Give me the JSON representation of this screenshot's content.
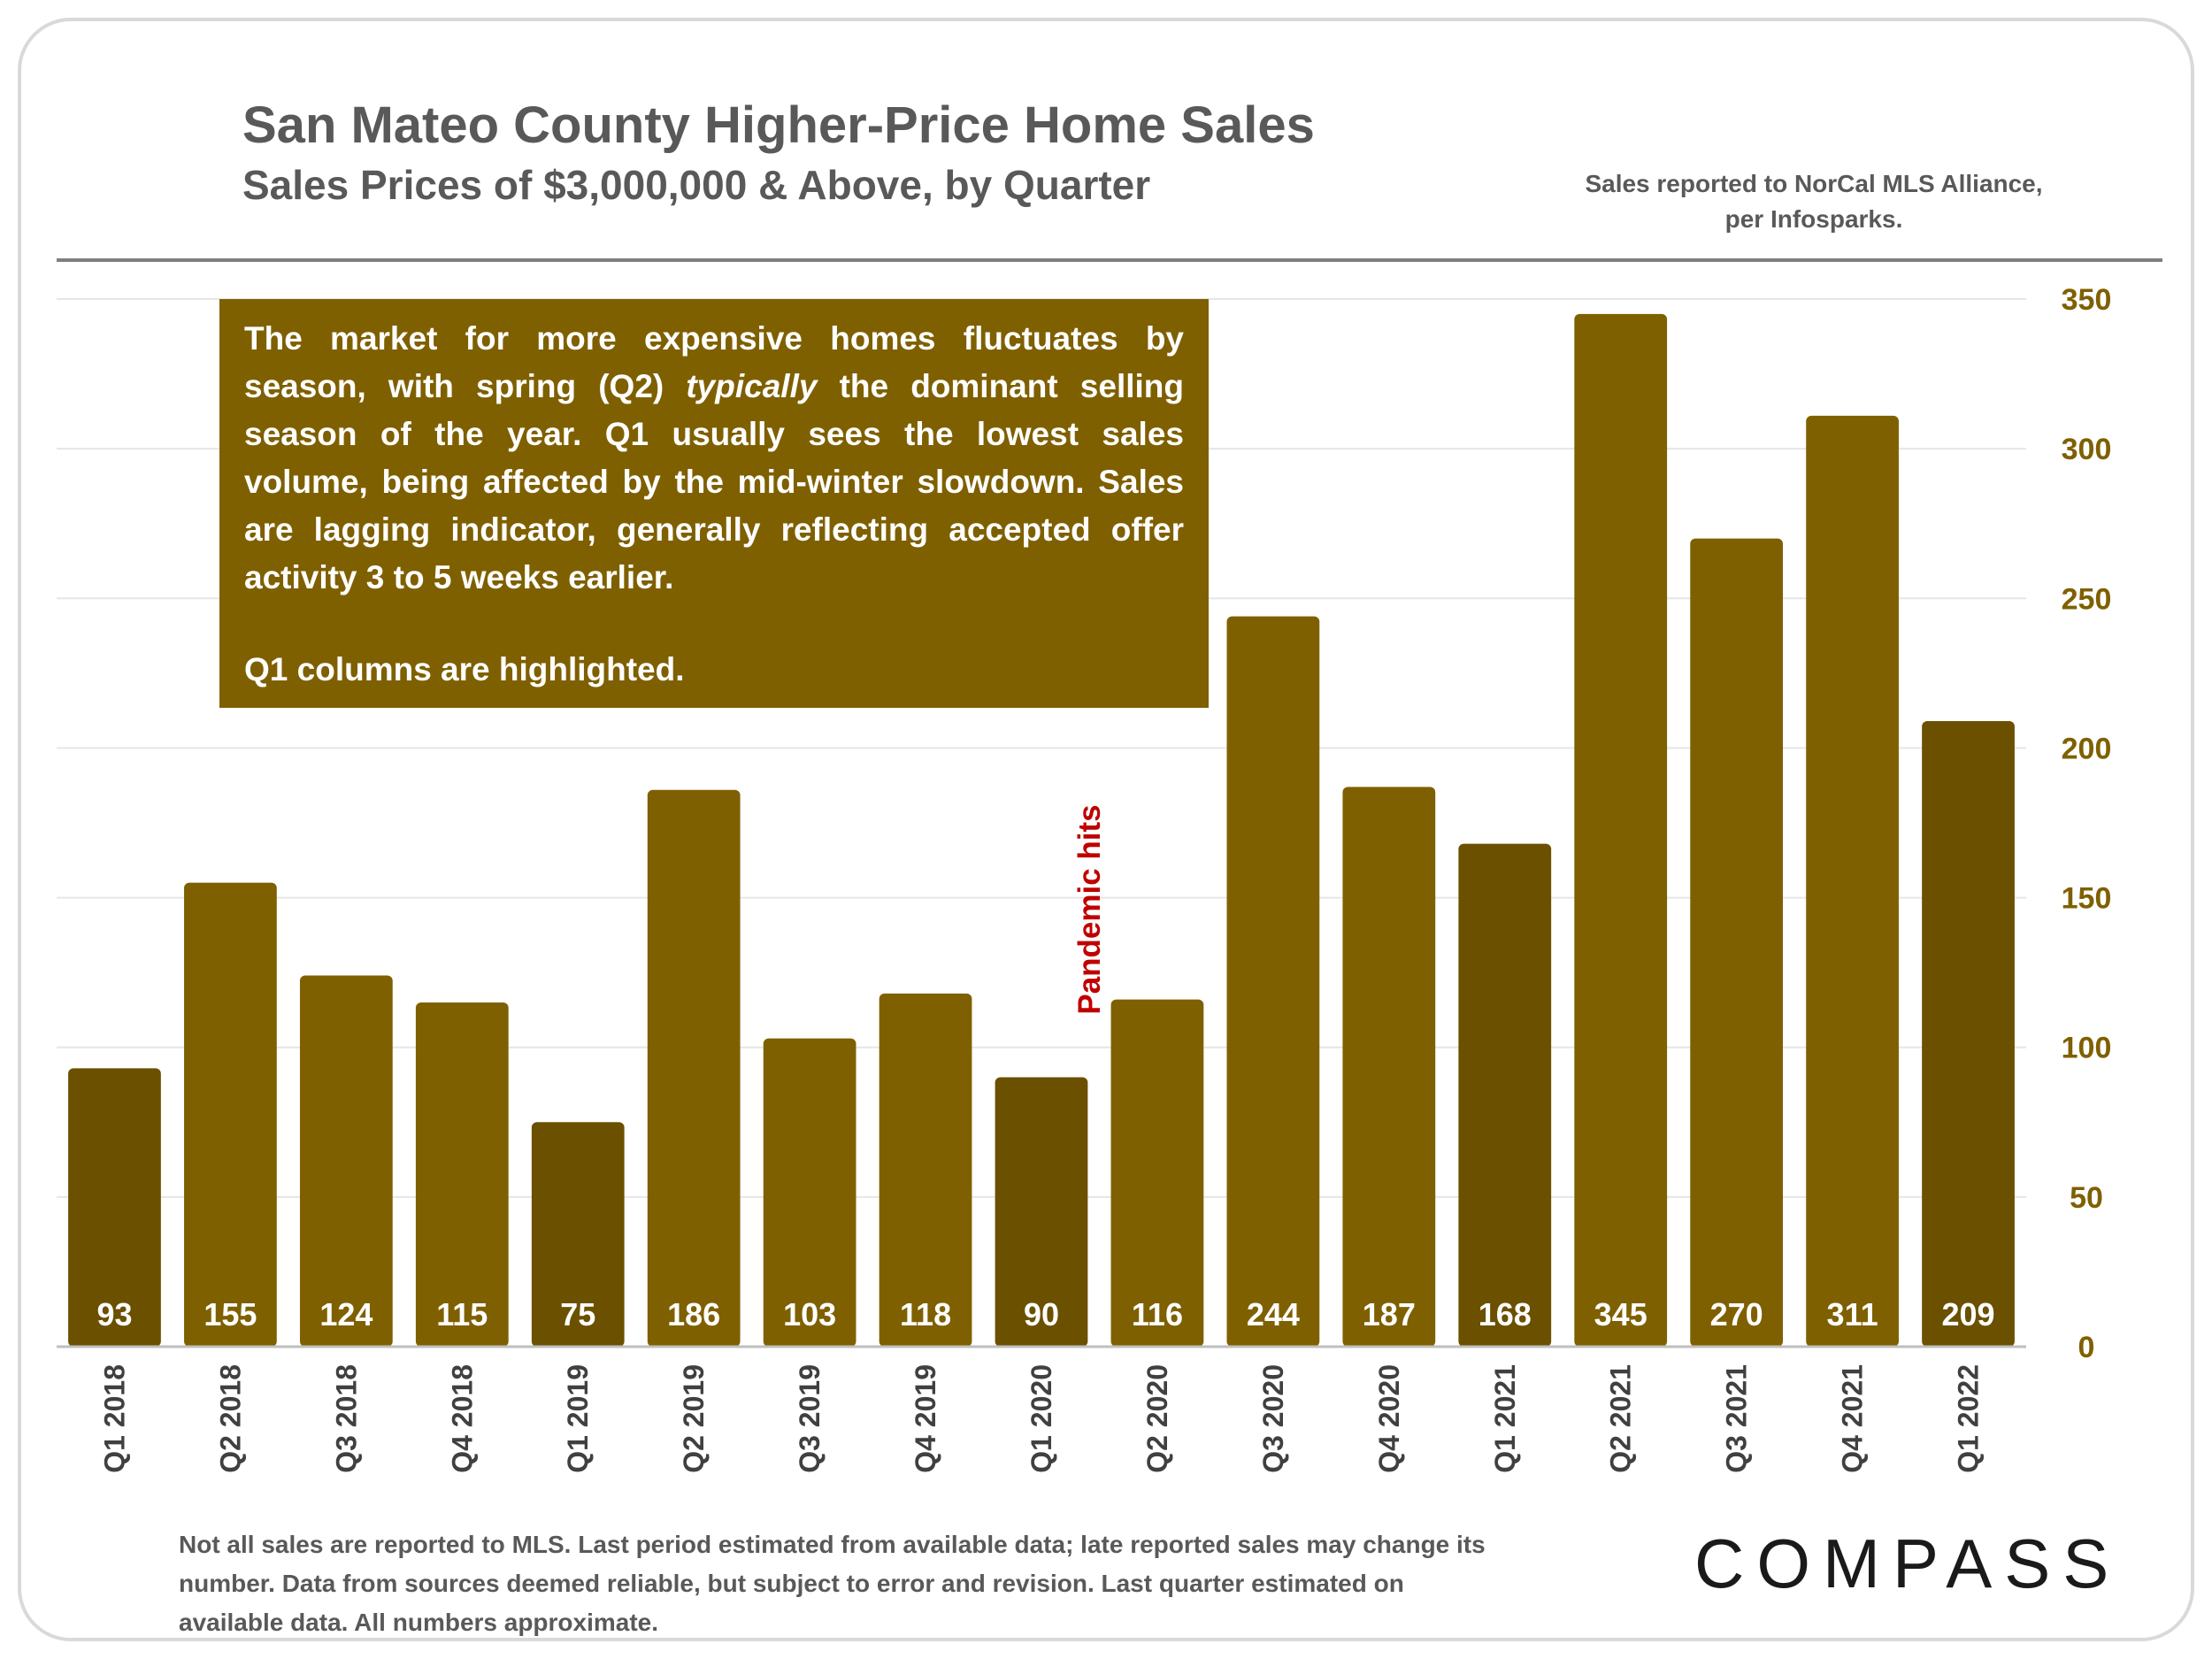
{
  "header": {
    "title": "San Mateo County Higher-Price Home Sales",
    "subtitle": "Sales Prices of $3,000,000 & Above, by Quarter",
    "source_note": "Sales reported to NorCal MLS Alliance, per Infosparks."
  },
  "note_box": {
    "text_before": "The market for more expensive homes fluctuates by season, with spring (Q2) ",
    "text_italic": "typically",
    "text_after": " the dominant selling season of the year. Q1 usually sees the lowest sales volume, being affected by the mid-winter slowdown. Sales are lagging indicator, generally reflecting accepted offer activity 3 to 5 weeks earlier.",
    "highlight_note": "Q1 columns are highlighted."
  },
  "annotation": {
    "pandemic": "Pandemic hits"
  },
  "footer": {
    "disclaimer": "Not all sales are reported to MLS. Last period estimated from available data; late reported sales may change its number. Data from sources deemed reliable, but subject to error and revision. Last quarter estimated on available data. All numbers  approximate.",
    "logo": "COMPASS"
  },
  "colors": {
    "bar": "#7f6000",
    "bar_q1": "#6b5000",
    "axis_text": "#7f6000",
    "label_text": "#ffffff",
    "annotation": "#c00000",
    "grid": "#e6e6e6"
  },
  "chart_data": {
    "type": "bar",
    "title": "San Mateo County Higher-Price Home Sales",
    "subtitle": "Sales Prices of $3,000,000 & Above, by Quarter",
    "categories": [
      "Q1 2018",
      "Q2 2018",
      "Q3 2018",
      "Q4 2018",
      "Q1 2019",
      "Q2 2019",
      "Q3 2019",
      "Q4 2019",
      "Q1 2020",
      "Q2 2020",
      "Q3 2020",
      "Q4 2020",
      "Q1 2021",
      "Q2 2021",
      "Q3 2021",
      "Q4 2021",
      "Q1 2022"
    ],
    "values": [
      93,
      155,
      124,
      115,
      75,
      186,
      103,
      118,
      90,
      116,
      244,
      187,
      168,
      345,
      270,
      311,
      209
    ],
    "highlighted": [
      true,
      false,
      false,
      false,
      true,
      false,
      false,
      false,
      true,
      false,
      false,
      false,
      true,
      false,
      false,
      false,
      true
    ],
    "ylim": [
      0,
      350
    ],
    "yticks": [
      0,
      50,
      100,
      150,
      200,
      250,
      300,
      350
    ],
    "yaxis_side": "right",
    "grid": true,
    "data_labels": "inside-bottom"
  }
}
